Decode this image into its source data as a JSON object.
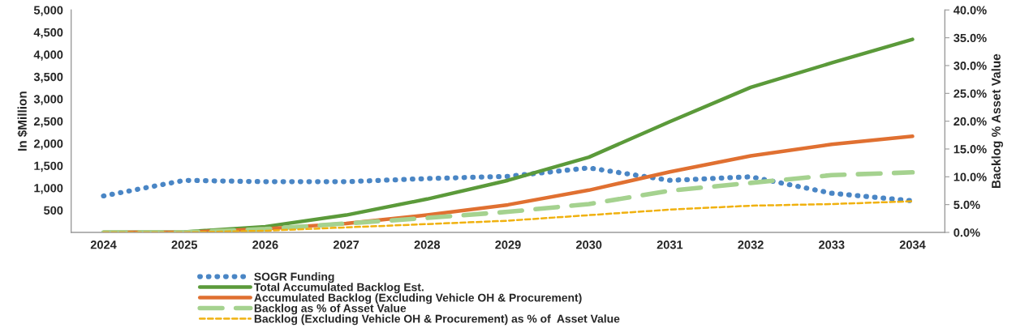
{
  "chart_data": {
    "type": "line",
    "ylabel": "In $Million",
    "y2label": "Backlog % Asset Value",
    "categories": [
      "2024",
      "2025",
      "2026",
      "2027",
      "2028",
      "2029",
      "2030",
      "2031",
      "2032",
      "2033",
      "2034"
    ],
    "series": [
      {
        "name": "SOGR Funding",
        "color": "#4a86c5",
        "line_style": "dotted",
        "values": [
          820,
          1170,
          1140,
          1140,
          1210,
          1260,
          1450,
          1170,
          1250,
          880,
          710
        ]
      },
      {
        "name": "Total Accumulated Backlog Est.",
        "color": "#5b9a3a",
        "line_style": "solid",
        "values": [
          0,
          10,
          130,
          390,
          750,
          1170,
          1690,
          2490,
          3260,
          3810,
          4340
        ]
      },
      {
        "name": "Accumulated Backlog (Excluding Vehicle OH & Procurement)",
        "color": "#e07031",
        "line_style": "solid",
        "values": [
          0,
          0,
          80,
          200,
          390,
          620,
          950,
          1360,
          1720,
          1980,
          2160
        ]
      },
      {
        "name": "Backlog as % of Asset Value",
        "color": "#a5d28f",
        "line_style": "dashed",
        "axis": "y2",
        "values": [
          0,
          0,
          0.6,
          1.6,
          2.6,
          3.7,
          5.1,
          7.5,
          8.9,
          10.3,
          10.8
        ]
      },
      {
        "name": "Backlog (Excluding Vehicle OH & Procurement) as % of  Asset Value",
        "color": "#f0b10f",
        "line_style": "dashed",
        "axis": "y2",
        "values": [
          0,
          0,
          0.3,
          0.9,
          1.5,
          2.1,
          3.1,
          4.1,
          4.8,
          5.1,
          5.6
        ]
      }
    ],
    "ylim": [
      0,
      5000
    ],
    "yticks": [
      {
        "value": 500,
        "label": "500"
      },
      {
        "value": 1000,
        "label": "1,000"
      },
      {
        "value": 1500,
        "label": "1,500"
      },
      {
        "value": 2000,
        "label": "2,000"
      },
      {
        "value": 2500,
        "label": "2,500"
      },
      {
        "value": 3000,
        "label": "3,000"
      },
      {
        "value": 3500,
        "label": "3,500"
      },
      {
        "value": 4000,
        "label": "4,000"
      },
      {
        "value": 4500,
        "label": "4,500"
      },
      {
        "value": 5000,
        "label": "5,000"
      }
    ],
    "y2lim": [
      0,
      40
    ],
    "y2ticks": [
      {
        "value": 0,
        "label": "0.0%"
      },
      {
        "value": 5,
        "label": "5.0%"
      },
      {
        "value": 10,
        "label": "10.0%"
      },
      {
        "value": 15,
        "label": "15.0%"
      },
      {
        "value": 20,
        "label": "20.0%"
      },
      {
        "value": 25,
        "label": "25.0%"
      },
      {
        "value": 30,
        "label": "30.0%"
      },
      {
        "value": 35,
        "label": "35.0%"
      },
      {
        "value": 40,
        "label": "40.0%"
      }
    ],
    "grid": false,
    "legend": "bottom",
    "marker": "none"
  }
}
